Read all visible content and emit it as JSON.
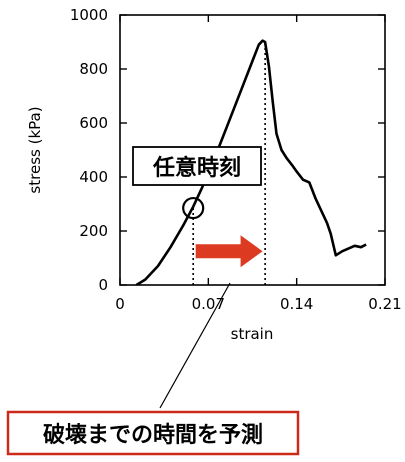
{
  "chart_data": {
    "type": "line",
    "xlabel": "strain",
    "ylabel": "stress (kPa)",
    "xlim": [
      0,
      0.21
    ],
    "ylim": [
      0,
      1000
    ],
    "xticks": [
      "0",
      "0.07",
      "0.14",
      "0.21"
    ],
    "yticks": [
      "0",
      "200",
      "400",
      "600",
      "800",
      "1000"
    ],
    "grid": false,
    "series": [
      {
        "x": [
          0.013,
          0.02,
          0.03,
          0.04,
          0.05,
          0.058,
          0.065,
          0.075,
          0.085,
          0.095,
          0.105,
          0.11,
          0.113,
          0.115,
          0.118,
          0.121,
          0.124,
          0.128,
          0.132,
          0.137,
          0.14,
          0.145,
          0.15,
          0.155,
          0.16,
          0.164,
          0.167,
          0.171,
          0.176,
          0.181,
          0.186,
          0.191,
          0.195
        ],
        "y": [
          0,
          20,
          70,
          140,
          220,
          290,
          360,
          470,
          590,
          710,
          830,
          890,
          905,
          900,
          810,
          680,
          560,
          500,
          470,
          440,
          420,
          390,
          380,
          320,
          270,
          230,
          190,
          110,
          125,
          135,
          145,
          140,
          150
        ]
      }
    ],
    "annotations": {
      "time_label": "任意時刻",
      "marker_point": {
        "x": 0.058,
        "y": 285
      },
      "vline_1_x": 0.058,
      "vline_2_x": 0.115,
      "arrow": {
        "from_x": 0.06,
        "to_x": 0.113,
        "y": 125,
        "color": "#dd3a22"
      },
      "prediction_label": "破壊までの時間を予測",
      "prediction_border_color": "#cc2a1a"
    }
  }
}
